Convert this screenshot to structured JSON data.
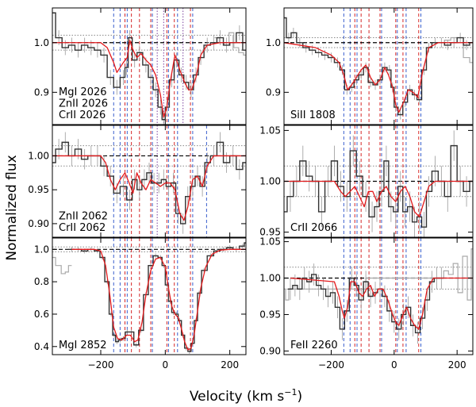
{
  "figure": {
    "ylabel": "Normalized flux",
    "xlabel_main": "Velocity  (km s",
    "xlabel_sup": "−1",
    "xlabel_close": ")"
  },
  "colors": {
    "data_step": "#333333",
    "data_gray": "#aaaaaa",
    "model": "#e31a1c",
    "blue_lines": "#3a5fcd",
    "red_lines": "#d62728",
    "purple_lines": "#7b3f9e",
    "continuum": "#000000",
    "error_band": "#888888"
  },
  "chart_data": [
    {
      "type": "line",
      "panel": "MgI-ZnII-CrII-2026",
      "labels": [
        "MgI 2026",
        "ZnII 2026",
        "CrII 2026"
      ],
      "xlim": [
        -350,
        250
      ],
      "ylim": [
        0.835,
        1.07
      ],
      "yticks": [
        0.9,
        1.0
      ],
      "ytick_labels": [
        "0.9",
        "1.0"
      ],
      "xticks": [
        -200,
        0,
        200
      ],
      "xtick_labels": [
        "−200",
        "0",
        "200"
      ],
      "show_xtick_labels": false,
      "continuum": 1.0,
      "error_band": [
        0.985,
        1.015
      ],
      "velocity": [
        -350,
        -330,
        -310,
        -290,
        -270,
        -250,
        -230,
        -210,
        -190,
        -170,
        -150,
        -130,
        -120,
        -110,
        -95,
        -80,
        -60,
        -45,
        -30,
        -15,
        -5,
        5,
        20,
        35,
        50,
        65,
        80,
        95,
        110,
        130,
        150,
        170,
        190,
        210,
        230,
        250
      ],
      "flux": [
        1.06,
        1.01,
        0.99,
        0.995,
        0.985,
        0.995,
        0.99,
        0.985,
        0.975,
        0.93,
        0.91,
        0.93,
        0.95,
        1.01,
        0.965,
        0.98,
        0.955,
        0.93,
        0.905,
        0.87,
        0.845,
        0.87,
        0.925,
        0.965,
        0.935,
        0.92,
        0.905,
        0.935,
        0.97,
        0.995,
        1.0,
        1.01,
        0.995,
        1.0,
        1.02,
        0.985
      ],
      "gray_velocity": [
        160,
        175,
        190,
        205,
        220,
        235,
        250
      ],
      "gray_flux": [
        1.01,
        1.0,
        0.995,
        1.02,
        0.99,
        0.98,
        0.975
      ],
      "model_velocity": [
        -350,
        -200,
        -180,
        -160,
        -150,
        -140,
        -130,
        -118,
        -110,
        -100,
        -88,
        -75,
        -60,
        -45,
        -30,
        -15,
        -5,
        5,
        15,
        30,
        45,
        60,
        72,
        82,
        95,
        110,
        130,
        170,
        250
      ],
      "model_flux": [
        1.0,
        1.0,
        0.99,
        0.96,
        0.94,
        0.95,
        0.96,
        0.97,
        1.005,
        0.985,
        0.97,
        0.978,
        0.965,
        0.955,
        0.935,
        0.895,
        0.85,
        0.87,
        0.92,
        0.975,
        0.945,
        0.92,
        0.905,
        0.905,
        0.93,
        0.975,
        0.995,
        1.0,
        1.0
      ],
      "blue_components": [
        -160,
        -140,
        -118,
        -40,
        10,
        38,
        85
      ],
      "red_components": [
        -125,
        -105,
        -80,
        -45,
        5,
        28,
        78
      ],
      "purple_components": [
        -25,
        -5,
        55
      ]
    },
    {
      "type": "line",
      "panel": "SiII-1808",
      "labels": [
        "SiII 1808"
      ],
      "xlim": [
        -350,
        250
      ],
      "ylim": [
        0.835,
        1.07
      ],
      "yticks": [
        0.9,
        1.0
      ],
      "ytick_labels": [
        "0.9",
        "1.0"
      ],
      "xticks": [
        -200,
        0,
        200
      ],
      "xtick_labels": [
        "−200",
        "0",
        "200"
      ],
      "show_xtick_labels": false,
      "continuum": 1.0,
      "error_band": [
        0.99,
        1.01
      ],
      "velocity": [
        -350,
        -335,
        -320,
        -300,
        -280,
        -260,
        -240,
        -220,
        -200,
        -180,
        -165,
        -150,
        -135,
        -120,
        -105,
        -90,
        -75,
        -60,
        -45,
        -30,
        -15,
        -5,
        5,
        20,
        35,
        50,
        65,
        80,
        95,
        110,
        130,
        150,
        170,
        190,
        210,
        230,
        250
      ],
      "flux": [
        1.05,
        1.01,
        1.02,
        1.0,
        0.99,
        0.985,
        0.98,
        0.975,
        0.97,
        0.96,
        0.945,
        0.905,
        0.91,
        0.925,
        0.935,
        0.95,
        0.92,
        0.915,
        0.925,
        0.95,
        0.945,
        0.91,
        0.87,
        0.855,
        0.88,
        0.905,
        0.895,
        0.885,
        0.945,
        0.99,
        1.0,
        1.0,
        0.995,
        1.0,
        1.01,
        0.995,
        1.0
      ],
      "gray_velocity": [
        150,
        170,
        190,
        210,
        230,
        250
      ],
      "gray_flux": [
        1.0,
        1.005,
        1.01,
        1.0,
        0.97,
        0.96
      ],
      "model_velocity": [
        -350,
        -250,
        -200,
        -175,
        -160,
        -148,
        -135,
        -120,
        -105,
        -90,
        -75,
        -60,
        -45,
        -30,
        -18,
        -5,
        5,
        15,
        30,
        45,
        60,
        75,
        90,
        110,
        140,
        250
      ],
      "model_flux": [
        1.0,
        0.99,
        0.975,
        0.96,
        0.935,
        0.905,
        0.915,
        0.93,
        0.945,
        0.955,
        0.93,
        0.915,
        0.925,
        0.95,
        0.935,
        0.91,
        0.875,
        0.86,
        0.88,
        0.905,
        0.9,
        0.89,
        0.94,
        0.99,
        1.0,
        1.0
      ],
      "blue_components": [
        -160,
        -140,
        -118,
        -40,
        10,
        38,
        85
      ],
      "red_components": [
        -125,
        -105,
        -80,
        -45,
        5,
        28,
        78
      ],
      "purple_components": []
    },
    {
      "type": "line",
      "panel": "ZnII-CrII-2062",
      "labels": [
        "ZnII 2062",
        "CrII 2062"
      ],
      "xlim": [
        -350,
        250
      ],
      "ylim": [
        0.88,
        1.045
      ],
      "yticks": [
        0.9,
        0.95,
        1.0
      ],
      "ytick_labels": [
        "0.90",
        "0.95",
        "1.00"
      ],
      "xticks": [
        -200,
        0,
        200
      ],
      "xtick_labels": [
        "−200",
        "0",
        "200"
      ],
      "show_xtick_labels": false,
      "continuum": 1.0,
      "error_band": [
        0.985,
        1.015
      ],
      "velocity": [
        -350,
        -330,
        -310,
        -290,
        -270,
        -250,
        -230,
        -210,
        -190,
        -170,
        -150,
        -130,
        -110,
        -95,
        -80,
        -65,
        -50,
        -35,
        -20,
        -5,
        10,
        25,
        40,
        55,
        70,
        85,
        100,
        115,
        130,
        150,
        170,
        190,
        210,
        230,
        250
      ],
      "flux": [
        0.99,
        1.01,
        1.02,
        1.0,
        1.01,
        0.995,
        1.0,
        1.0,
        0.985,
        0.97,
        0.945,
        0.955,
        0.935,
        0.965,
        0.95,
        0.965,
        0.975,
        0.96,
        0.96,
        0.965,
        0.955,
        0.96,
        0.915,
        0.9,
        0.94,
        0.955,
        0.97,
        0.955,
        0.99,
        1.0,
        1.02,
        0.99,
        1.0,
        0.98,
        0.99
      ],
      "model_velocity": [
        -350,
        -200,
        -185,
        -170,
        -155,
        -140,
        -125,
        -112,
        -100,
        -88,
        -75,
        -60,
        -45,
        -30,
        -15,
        0,
        15,
        30,
        45,
        58,
        70,
        85,
        100,
        115,
        130,
        150,
        250
      ],
      "model_flux": [
        1.0,
        1.0,
        0.99,
        0.965,
        0.95,
        0.965,
        0.975,
        0.96,
        0.945,
        0.975,
        0.96,
        0.95,
        0.965,
        0.96,
        0.955,
        0.96,
        0.96,
        0.95,
        0.915,
        0.905,
        0.925,
        0.965,
        0.97,
        0.955,
        0.985,
        1.0,
        1.0
      ],
      "blue_components": [
        -160,
        -140,
        -118,
        -40,
        10,
        38,
        85,
        128
      ],
      "red_components": [
        -125,
        -105,
        -80,
        -45,
        5,
        28,
        78
      ],
      "purple_components": [
        -25
      ]
    },
    {
      "type": "line",
      "panel": "CrII-2066",
      "labels": [
        "CrII 2066"
      ],
      "xlim": [
        -350,
        250
      ],
      "ylim": [
        0.945,
        1.055
      ],
      "yticks": [
        0.95,
        1.0,
        1.05
      ],
      "ytick_labels": [
        "0.95",
        "1.00",
        "1.05"
      ],
      "xticks": [
        -200,
        0,
        200
      ],
      "xtick_labels": [
        "−200",
        "0",
        "200"
      ],
      "show_xtick_labels": false,
      "continuum": 1.0,
      "error_band": [
        0.985,
        1.015
      ],
      "velocity": [
        -350,
        -330,
        -310,
        -290,
        -270,
        -250,
        -230,
        -210,
        -190,
        -170,
        -150,
        -130,
        -110,
        -90,
        -70,
        -55,
        -40,
        -25,
        -10,
        5,
        20,
        35,
        50,
        65,
        80,
        95,
        110,
        130,
        150,
        170,
        190,
        210,
        230,
        250
      ],
      "flux": [
        0.97,
        0.985,
        1.0,
        1.02,
        1.005,
        1.0,
        0.97,
        1.0,
        1.02,
        0.995,
        0.985,
        1.03,
        1.005,
        0.985,
        0.965,
        0.975,
        0.99,
        1.02,
        0.975,
        0.97,
        0.995,
        0.97,
        0.975,
        0.96,
        0.965,
        0.955,
        0.99,
        1.01,
        1.0,
        0.985,
        1.035,
        1.0,
        0.99,
        1.0
      ],
      "model_velocity": [
        -350,
        -190,
        -170,
        -155,
        -140,
        -125,
        -110,
        -95,
        -82,
        -68,
        -55,
        -40,
        -25,
        -10,
        5,
        20,
        35,
        50,
        65,
        80,
        95,
        110,
        130,
        250
      ],
      "model_flux": [
        1.0,
        1.0,
        0.99,
        0.985,
        0.99,
        0.995,
        0.985,
        0.975,
        0.99,
        0.99,
        0.98,
        0.99,
        0.995,
        0.985,
        0.98,
        0.99,
        0.995,
        0.985,
        0.97,
        0.965,
        0.98,
        0.995,
        1.0,
        1.0
      ],
      "blue_components": [
        -160,
        -140,
        -118,
        -40,
        10,
        38,
        85
      ],
      "red_components": [
        -125,
        -105,
        -80,
        -45,
        5,
        28,
        78
      ],
      "purple_components": []
    },
    {
      "type": "line",
      "panel": "MgI-2852",
      "labels": [
        "MgI 2852"
      ],
      "xlim": [
        -350,
        250
      ],
      "ylim": [
        0.35,
        1.07
      ],
      "yticks": [
        0.4,
        0.6,
        0.8,
        1.0
      ],
      "ytick_labels": [
        "0.4",
        "0.6",
        "0.8",
        "1.0"
      ],
      "xticks": [
        -200,
        0,
        200
      ],
      "xtick_labels": [
        "−200",
        "0",
        "200"
      ],
      "show_xtick_labels": true,
      "continuum": 1.0,
      "error_band": [
        0.985,
        1.015
      ],
      "velocity": [
        -290,
        -270,
        -250,
        -230,
        -210,
        -195,
        -180,
        -168,
        -158,
        -150,
        -140,
        -130,
        -118,
        -105,
        -90,
        -75,
        -60,
        -45,
        -30,
        -15,
        -5,
        5,
        15,
        25,
        35,
        45,
        55,
        65,
        75,
        85,
        95,
        105,
        120,
        140,
        160,
        180,
        200,
        220,
        240,
        250
      ],
      "flux": [
        1.0,
        1.0,
        0.99,
        1.0,
        0.99,
        0.95,
        0.8,
        0.6,
        0.47,
        0.43,
        0.44,
        0.45,
        0.49,
        0.49,
        0.41,
        0.5,
        0.72,
        0.9,
        0.96,
        0.95,
        0.9,
        0.78,
        0.68,
        0.61,
        0.6,
        0.56,
        0.47,
        0.39,
        0.37,
        0.42,
        0.56,
        0.73,
        0.87,
        0.96,
        0.99,
        1.0,
        1.01,
        1.0,
        1.02,
        1.04
      ],
      "gray_velocity": [
        -350,
        -330,
        -315,
        -305,
        -295
      ],
      "gray_flux": [
        0.95,
        0.9,
        0.85,
        0.86,
        0.9
      ],
      "model_velocity": [
        -290,
        -220,
        -200,
        -185,
        -172,
        -160,
        -148,
        -135,
        -120,
        -108,
        -95,
        -85,
        -72,
        -60,
        -45,
        -30,
        -15,
        0,
        10,
        20,
        30,
        40,
        50,
        60,
        70,
        80,
        90,
        100,
        110,
        125,
        145,
        170,
        200,
        250
      ],
      "model_flux": [
        1.0,
        1.0,
        0.99,
        0.9,
        0.72,
        0.52,
        0.45,
        0.44,
        0.47,
        0.47,
        0.43,
        0.44,
        0.55,
        0.72,
        0.87,
        0.94,
        0.95,
        0.89,
        0.76,
        0.65,
        0.6,
        0.58,
        0.51,
        0.43,
        0.38,
        0.39,
        0.48,
        0.62,
        0.76,
        0.89,
        0.97,
        0.995,
        1.0,
        1.0
      ],
      "blue_components": [
        -160,
        -140,
        -118,
        -40,
        10,
        38,
        85
      ],
      "red_components": [
        -125,
        -105,
        -80,
        -45,
        5,
        28,
        78
      ],
      "purple_components": []
    },
    {
      "type": "line",
      "panel": "FeII-2260",
      "labels": [
        "FeII 2260"
      ],
      "xlim": [
        -350,
        250
      ],
      "ylim": [
        0.895,
        1.055
      ],
      "yticks": [
        0.9,
        0.95,
        1.0,
        1.05
      ],
      "ytick_labels": [
        "0.90",
        "0.95",
        "1.00",
        "1.05"
      ],
      "xticks": [
        -200,
        0,
        200
      ],
      "xtick_labels": [
        "−200",
        "0",
        "200"
      ],
      "show_xtick_labels": true,
      "continuum": 1.0,
      "error_band": [
        0.985,
        1.015
      ],
      "velocity": [
        -330,
        -315,
        -300,
        -285,
        -270,
        -255,
        -240,
        -225,
        -210,
        -195,
        -180,
        -165,
        -150,
        -135,
        -120,
        -105,
        -90,
        -75,
        -60,
        -45,
        -30,
        -15,
        0,
        15,
        30,
        45,
        60,
        75,
        90,
        105,
        120,
        135,
        150
      ],
      "flux": [
        0.985,
        0.99,
        0.985,
        1.0,
        0.995,
        1.005,
        0.99,
        0.985,
        0.975,
        0.98,
        0.96,
        0.93,
        0.955,
        1.0,
        0.99,
        0.97,
        0.995,
        0.975,
        0.98,
        0.985,
        0.975,
        0.955,
        0.94,
        0.93,
        0.95,
        0.96,
        0.935,
        0.925,
        0.945,
        0.97,
        0.995,
        1.0,
        1.0
      ],
      "gray_velocity": [
        -350,
        -340,
        -330,
        150,
        165,
        180,
        195,
        210,
        225,
        240,
        250
      ],
      "gray_flux": [
        0.985,
        0.97,
        0.985,
        1.0,
        1.01,
        1.005,
        1.02,
        0.98,
        1.03,
        0.97,
        1.04
      ],
      "model_velocity": [
        -330,
        -190,
        -175,
        -165,
        -158,
        -148,
        -138,
        -125,
        -112,
        -100,
        -88,
        -75,
        -62,
        -50,
        -35,
        -20,
        -5,
        5,
        15,
        28,
        40,
        52,
        65,
        78,
        90,
        105,
        125,
        250
      ],
      "model_flux": [
        1.0,
        0.995,
        0.975,
        0.955,
        0.945,
        0.96,
        0.995,
        0.995,
        0.98,
        0.975,
        0.985,
        0.99,
        0.975,
        0.985,
        0.985,
        0.97,
        0.95,
        0.94,
        0.935,
        0.95,
        0.96,
        0.945,
        0.935,
        0.93,
        0.95,
        0.985,
        1.0,
        1.0
      ],
      "blue_components": [
        -160,
        -140,
        -118,
        -40,
        10,
        38,
        85
      ],
      "red_components": [
        -125,
        -105,
        -80,
        -45,
        5,
        28,
        78
      ],
      "purple_components": []
    }
  ]
}
